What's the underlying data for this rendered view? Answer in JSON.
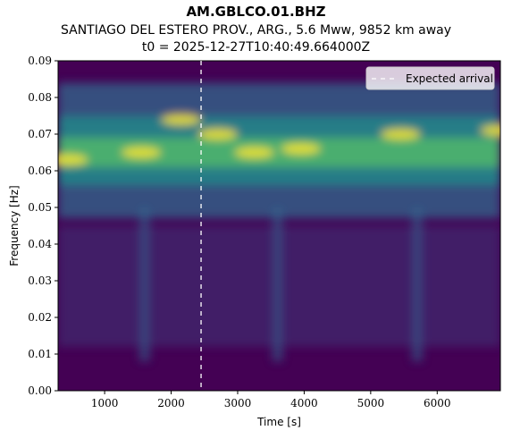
{
  "title": "AM.GBLCO.01.BHZ",
  "subtitle": "SANTIAGO DEL ESTERO PROV., ARG., 5.6 Mww, 9852 km away",
  "t0_line": "t0 = 2025-12-27T10:40:49.664000Z",
  "colors": {
    "bg_dark": "#440154",
    "mid": "#31688e",
    "teal": "#21918c",
    "green": "#5ec962",
    "yellow": "#fde725"
  },
  "chart_data": {
    "type": "heatmap",
    "title": "AM.GBLCO.01.BHZ",
    "xlabel": "Time [s]",
    "ylabel": "Frequency [Hz]",
    "xlim": [
      300,
      6950
    ],
    "ylim": [
      0,
      0.09
    ],
    "x_ticks": [
      1000,
      2000,
      3000,
      4000,
      5000,
      6000
    ],
    "x_tick_labels": [
      "1000",
      "2000",
      "3000",
      "4000",
      "5000",
      "6000"
    ],
    "y_ticks": [
      0,
      0.01,
      0.02,
      0.03,
      0.04,
      0.05,
      0.06,
      0.07,
      0.08,
      0.09
    ],
    "y_tick_labels": [
      "0.00",
      "0.01",
      "0.02",
      "0.03",
      "0.04",
      "0.05",
      "0.06",
      "0.07",
      "0.08",
      "0.09"
    ],
    "expected_arrival_s": 2450,
    "legend": {
      "entries": [
        "Expected arrival"
      ],
      "position": "top-right"
    },
    "colormap": "viridis",
    "grid": false,
    "features": {
      "dominant_band_hz": 0.065,
      "hotspots": [
        {
          "t": 450,
          "f": 0.063
        },
        {
          "t": 1550,
          "f": 0.065
        },
        {
          "t": 2150,
          "f": 0.074
        },
        {
          "t": 2700,
          "f": 0.07
        },
        {
          "t": 3250,
          "f": 0.065
        },
        {
          "t": 3950,
          "f": 0.066
        },
        {
          "t": 5450,
          "f": 0.07
        },
        {
          "t": 6950,
          "f": 0.071
        }
      ],
      "vertical_streaks_s": [
        1600,
        3600,
        5700
      ]
    }
  }
}
